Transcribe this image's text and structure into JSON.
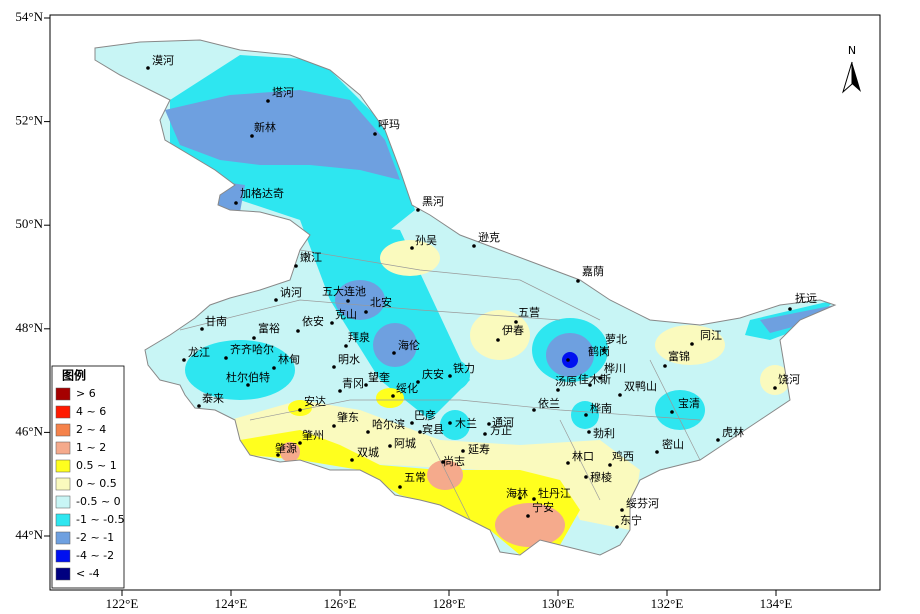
{
  "map": {
    "north_label": "N",
    "lat_labels": [
      "54°N",
      "52°N",
      "50°N",
      "48°N",
      "46°N",
      "44°N"
    ],
    "lon_labels": [
      "122°E",
      "124°E",
      "126°E",
      "128°E",
      "130°E",
      "132°E",
      "134°E"
    ],
    "stations": [
      "漠河",
      "塔河",
      "新林",
      "呼玛",
      "加格达奇",
      "黑河",
      "孙吴",
      "逊克",
      "嫩江",
      "嘉荫",
      "讷河",
      "五大连池",
      "北安",
      "抚远",
      "甘南",
      "克山",
      "依安",
      "五营",
      "富裕",
      "拜泉",
      "伊春",
      "萝北",
      "同江",
      "海伦",
      "鹤岗",
      "龙江",
      "齐齐哈尔",
      "林甸",
      "明水",
      "富锦",
      "桦川",
      "杜尔伯特",
      "青冈",
      "望奎",
      "庆安",
      "铁力",
      "汤原",
      "佳木斯",
      "双鸭山",
      "饶河",
      "绥化",
      "泰来",
      "安达",
      "依兰",
      "宝清",
      "肇东",
      "巴彦",
      "木兰",
      "通河",
      "桦南",
      "哈尔滨",
      "宾县",
      "方正",
      "勃利",
      "虎林",
      "肇州",
      "阿城",
      "延寿",
      "密山",
      "肇源",
      "双城",
      "林口",
      "鸡西",
      "尚志",
      "穆棱",
      "五常",
      "海林",
      "牡丹江",
      "宁安",
      "绥芬河",
      "东宁"
    ],
    "legend": {
      "title": "图例",
      "items": [
        {
          "label": "> 6",
          "color": "#a50000"
        },
        {
          "label": "4 ~ 6",
          "color": "#ff1a00"
        },
        {
          "label": "2 ~ 4",
          "color": "#f5824a"
        },
        {
          "label": "1 ~ 2",
          "color": "#f5aa8c"
        },
        {
          "label": "0.5 ~ 1",
          "color": "#ffff1e"
        },
        {
          "label": "0 ~ 0.5",
          "color": "#fafabe"
        },
        {
          "label": "-0.5 ~ 0",
          "color": "#c8f5f5"
        },
        {
          "label": "-1 ~ -0.5",
          "color": "#2ee6f0"
        },
        {
          "label": "-2 ~ -1",
          "color": "#6ea0e0"
        },
        {
          "label": "-4 ~ -2",
          "color": "#0010f0"
        },
        {
          "label": "< -4",
          "color": "#000080"
        }
      ]
    }
  }
}
